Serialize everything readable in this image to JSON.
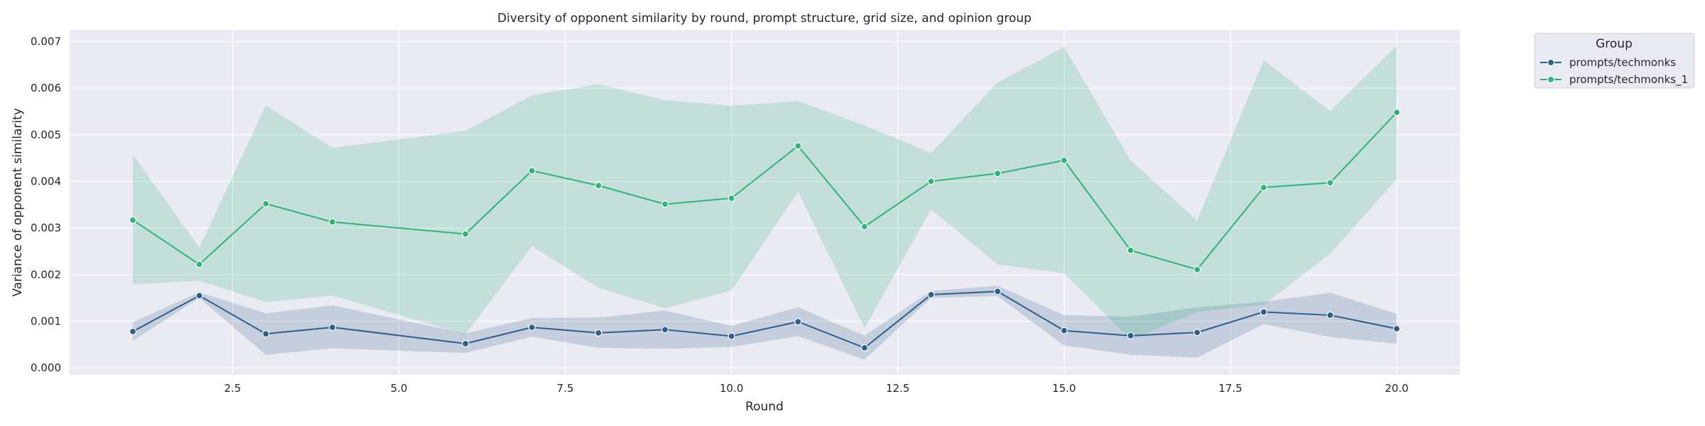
{
  "chart_data": {
    "type": "line",
    "title": "Diversity of opponent similarity by round, prompt structure, grid size, and opinion group",
    "xlabel": "Round",
    "ylabel": "Variance of opponent similarity",
    "xlim": [
      0.05,
      20.95
    ],
    "ylim": [
      -0.00015,
      0.00725
    ],
    "x_ticks": [
      2.5,
      5.0,
      7.5,
      10.0,
      12.5,
      15.0,
      17.5,
      20.0
    ],
    "x_tick_labels": [
      "2.5",
      "5.0",
      "7.5",
      "10.0",
      "12.5",
      "15.0",
      "17.5",
      "20.0"
    ],
    "y_ticks": [
      0.0,
      0.001,
      0.002,
      0.003,
      0.004,
      0.005,
      0.006,
      0.007
    ],
    "y_tick_labels": [
      "0.000",
      "0.001",
      "0.002",
      "0.003",
      "0.004",
      "0.005",
      "0.006",
      "0.007"
    ],
    "grid": true,
    "legend": {
      "title": "Group",
      "placement": "outside-top-right"
    },
    "x": [
      1,
      2,
      3,
      4,
      6,
      7,
      8,
      9,
      10,
      11,
      12,
      13,
      14,
      15,
      16,
      17,
      18,
      19,
      20
    ],
    "series": [
      {
        "name": "prompts/techmonks",
        "color": "#2d5f8a",
        "values": [
          0.00078,
          0.00155,
          0.00073,
          0.00087,
          0.00052,
          0.00087,
          0.00075,
          0.00082,
          0.00068,
          0.00099,
          0.00043,
          0.00157,
          0.00164,
          0.0008,
          0.00069,
          0.00076,
          0.0012,
          0.00113,
          0.00084
        ],
        "ci_lower": [
          0.00058,
          0.0015,
          0.00028,
          0.00042,
          0.00032,
          0.00067,
          0.00043,
          0.00041,
          0.00045,
          0.00068,
          0.00018,
          0.0015,
          0.00154,
          0.00048,
          0.00028,
          0.00022,
          0.00094,
          0.00066,
          0.00052
        ],
        "ci_upper": [
          0.00098,
          0.00162,
          0.00117,
          0.00134,
          0.00074,
          0.00107,
          0.00108,
          0.00123,
          0.0009,
          0.0013,
          0.00069,
          0.00165,
          0.00176,
          0.00113,
          0.0011,
          0.0013,
          0.00142,
          0.00161,
          0.00116
        ]
      },
      {
        "name": "prompts/techmonks_1",
        "color": "#2fb47c",
        "values": [
          0.00317,
          0.00222,
          0.00352,
          0.00313,
          0.00287,
          0.00423,
          0.00391,
          0.00351,
          0.00364,
          0.00476,
          0.00303,
          0.004,
          0.00417,
          0.00445,
          0.00252,
          0.00211,
          0.00387,
          0.00397,
          0.00548
        ],
        "ci_lower": [
          0.00179,
          0.00187,
          0.00141,
          0.00155,
          0.00072,
          0.00261,
          0.00172,
          0.00128,
          0.00166,
          0.00378,
          0.00085,
          0.0034,
          0.00222,
          0.00203,
          0.0006,
          0.0012,
          0.00135,
          0.00245,
          0.00405
        ],
        "ci_upper": [
          0.00457,
          0.00258,
          0.00563,
          0.00472,
          0.00508,
          0.00585,
          0.00608,
          0.00574,
          0.00562,
          0.00572,
          0.0052,
          0.00461,
          0.00612,
          0.00688,
          0.00445,
          0.00316,
          0.0066,
          0.00551,
          0.00691
        ]
      }
    ]
  }
}
